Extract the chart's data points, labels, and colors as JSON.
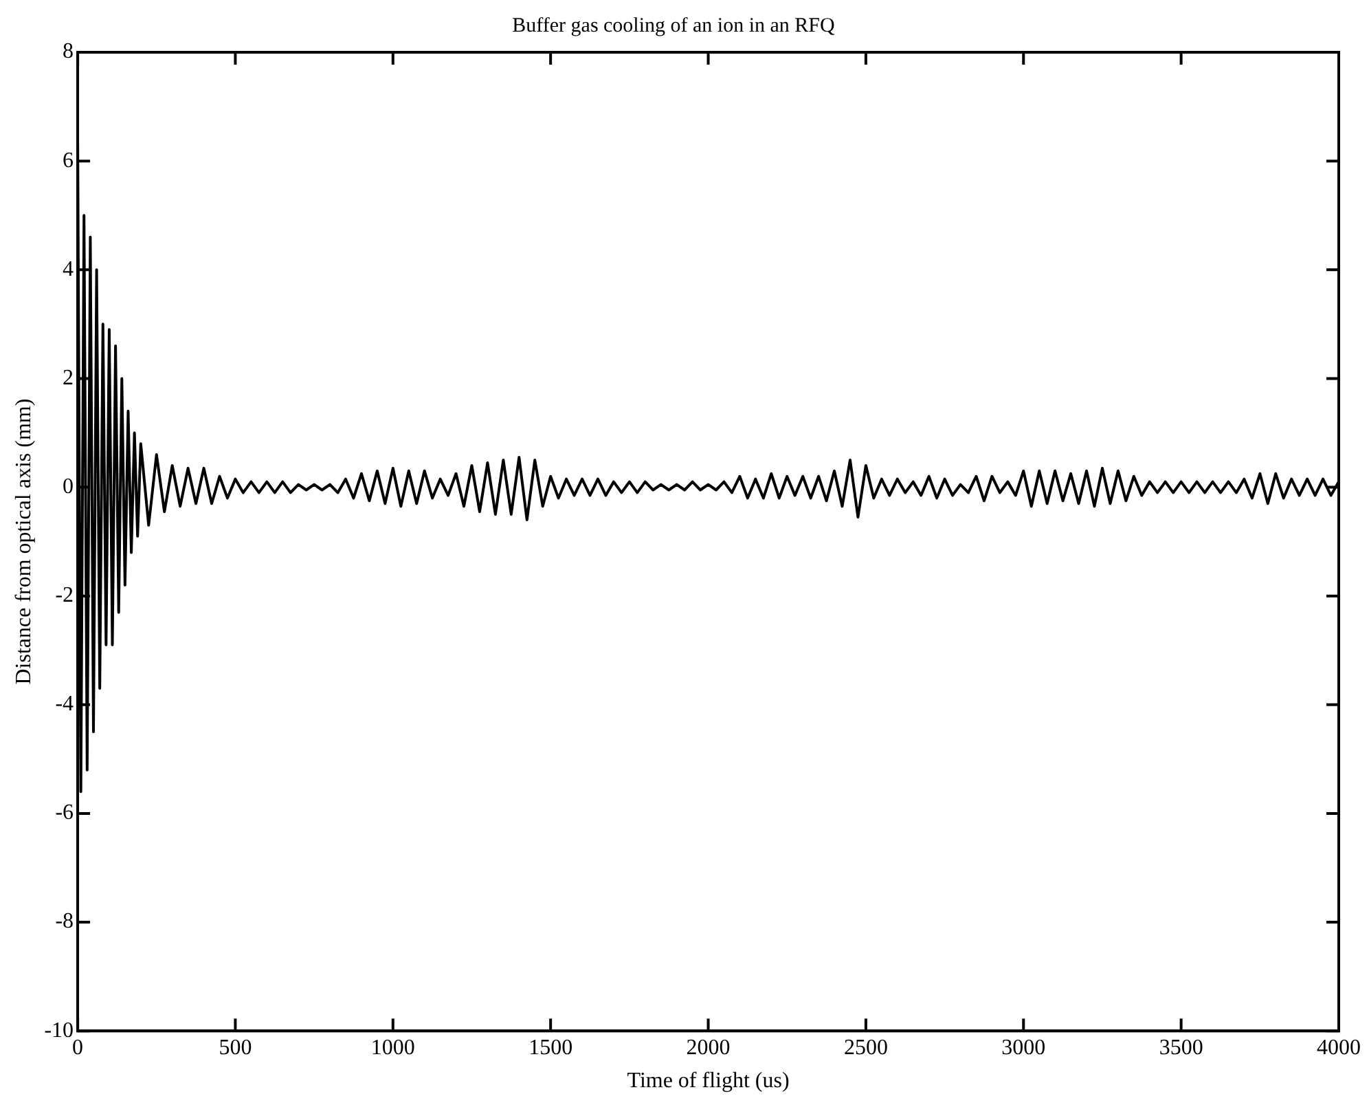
{
  "chart_data": {
    "type": "line",
    "title": "Buffer gas cooling of an ion in an RFQ",
    "xlabel": "Time of flight (us)",
    "ylabel": "Distance from optical axis (mm)",
    "x": [
      0,
      10,
      20,
      30,
      40,
      50,
      60,
      70,
      80,
      90,
      100,
      110,
      120,
      130,
      140,
      150,
      160,
      170,
      180,
      190,
      200,
      225,
      250,
      275,
      300,
      325,
      350,
      375,
      400,
      425,
      450,
      475,
      500,
      525,
      550,
      575,
      600,
      625,
      650,
      675,
      700,
      725,
      750,
      775,
      800,
      825,
      850,
      875,
      900,
      925,
      950,
      975,
      1000,
      1025,
      1050,
      1075,
      1100,
      1125,
      1150,
      1175,
      1200,
      1225,
      1250,
      1275,
      1300,
      1325,
      1350,
      1375,
      1400,
      1425,
      1450,
      1475,
      1500,
      1525,
      1550,
      1575,
      1600,
      1625,
      1650,
      1675,
      1700,
      1725,
      1750,
      1775,
      1800,
      1825,
      1850,
      1875,
      1900,
      1925,
      1950,
      1975,
      2000,
      2025,
      2050,
      2075,
      2100,
      2125,
      2150,
      2175,
      2200,
      2225,
      2250,
      2275,
      2300,
      2325,
      2350,
      2375,
      2400,
      2425,
      2450,
      2475,
      2500,
      2525,
      2550,
      2575,
      2600,
      2625,
      2650,
      2675,
      2700,
      2725,
      2750,
      2775,
      2800,
      2825,
      2850,
      2875,
      2900,
      2925,
      2950,
      2975,
      3000,
      3025,
      3050,
      3075,
      3100,
      3125,
      3150,
      3175,
      3200,
      3225,
      3250,
      3275,
      3300,
      3325,
      3350,
      3375,
      3400,
      3425,
      3450,
      3475,
      3500,
      3525,
      3550,
      3575,
      3600,
      3625,
      3650,
      3675,
      3700,
      3725,
      3750,
      3775,
      3800,
      3825,
      3850,
      3875,
      3900,
      3925,
      3950,
      3975,
      4000
    ],
    "series": [
      {
        "color": "#000000",
        "values": [
          6.3,
          -5.6,
          5.0,
          -5.2,
          4.6,
          -4.5,
          4.0,
          -3.7,
          3.0,
          -2.9,
          2.9,
          -2.9,
          2.6,
          -2.3,
          2.0,
          -1.8,
          1.4,
          -1.2,
          1.0,
          -0.9,
          0.8,
          -0.7,
          0.6,
          -0.45,
          0.4,
          -0.35,
          0.35,
          -0.3,
          0.35,
          -0.3,
          0.2,
          -0.2,
          0.15,
          -0.1,
          0.1,
          -0.1,
          0.1,
          -0.1,
          0.1,
          -0.1,
          0.05,
          -0.05,
          0.05,
          -0.05,
          0.05,
          -0.1,
          0.15,
          -0.2,
          0.25,
          -0.25,
          0.3,
          -0.3,
          0.35,
          -0.35,
          0.3,
          -0.3,
          0.3,
          -0.2,
          0.15,
          -0.15,
          0.25,
          -0.35,
          0.4,
          -0.45,
          0.45,
          -0.5,
          0.5,
          -0.5,
          0.55,
          -0.6,
          0.5,
          -0.35,
          0.2,
          -0.2,
          0.15,
          -0.15,
          0.15,
          -0.15,
          0.15,
          -0.15,
          0.1,
          -0.1,
          0.1,
          -0.1,
          0.1,
          -0.05,
          0.05,
          -0.05,
          0.05,
          -0.05,
          0.1,
          -0.05,
          0.05,
          -0.05,
          0.1,
          -0.1,
          0.2,
          -0.2,
          0.15,
          -0.2,
          0.25,
          -0.2,
          0.2,
          -0.15,
          0.2,
          -0.2,
          0.2,
          -0.25,
          0.3,
          -0.35,
          0.5,
          -0.55,
          0.4,
          -0.2,
          0.15,
          -0.15,
          0.15,
          -0.1,
          0.1,
          -0.15,
          0.2,
          -0.2,
          0.15,
          -0.15,
          0.05,
          -0.1,
          0.2,
          -0.25,
          0.2,
          -0.1,
          0.1,
          -0.15,
          0.3,
          -0.35,
          0.3,
          -0.3,
          0.3,
          -0.25,
          0.25,
          -0.3,
          0.3,
          -0.35,
          0.35,
          -0.3,
          0.3,
          -0.25,
          0.2,
          -0.15,
          0.1,
          -0.1,
          0.1,
          -0.1,
          0.1,
          -0.1,
          0.1,
          -0.1,
          0.1,
          -0.1,
          0.1,
          -0.1,
          0.15,
          -0.2,
          0.25,
          -0.3,
          0.25,
          -0.2,
          0.15,
          -0.15,
          0.15,
          -0.15,
          0.15,
          -0.15,
          0.1
        ]
      }
    ],
    "xlim": [
      0,
      4000
    ],
    "xticks": [
      0,
      500,
      1000,
      1500,
      2000,
      2500,
      3000,
      3500,
      4000
    ],
    "ylim": [
      -10,
      8
    ],
    "yticks": [
      -10,
      -8,
      -6,
      -4,
      -2,
      0,
      2,
      4,
      6,
      8
    ],
    "marker": "none",
    "line_style": "solid",
    "legend": false
  }
}
